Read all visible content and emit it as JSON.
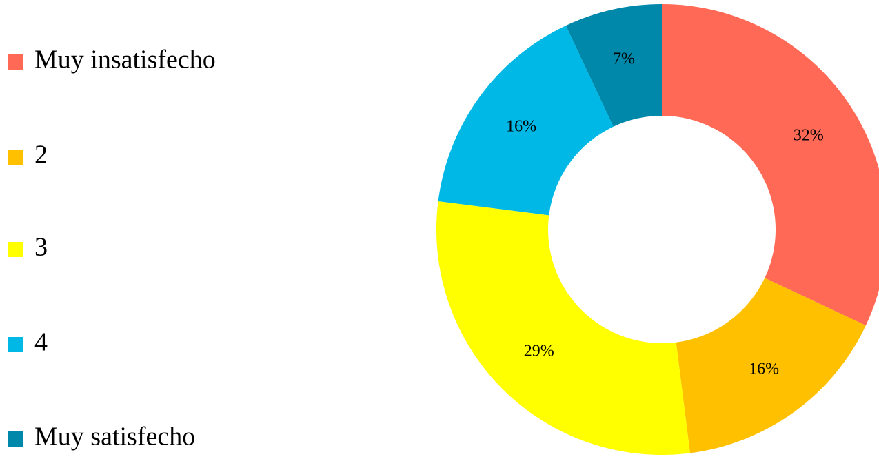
{
  "chart_data": {
    "type": "donut",
    "categories": [
      "Muy insatisfecho",
      "2",
      "3",
      "4",
      "Muy satisfecho"
    ],
    "values": [
      32,
      16,
      29,
      16,
      7
    ],
    "value_labels": [
      "32%",
      "16%",
      "29%",
      "16%",
      "7%"
    ],
    "colors": [
      "#ff6955",
      "#ffc000",
      "#ffff00",
      "#00b8e6",
      "#0088aa"
    ],
    "legend": "left"
  }
}
